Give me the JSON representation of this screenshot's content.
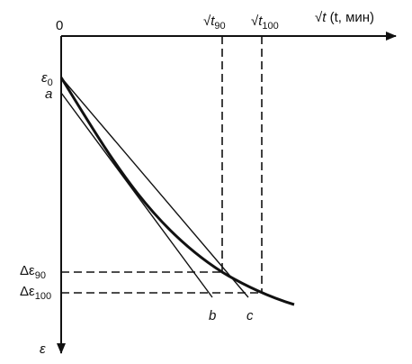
{
  "axes": {
    "origin_label": "0",
    "x_label_prefix": "√",
    "x_label_var": "t",
    "x_label_suffix": " (t, мин)",
    "y_label": "ε"
  },
  "top_ticks": {
    "t90": {
      "radical": "√",
      "var": "t",
      "sub": "90"
    },
    "t100": {
      "radical": "√",
      "var": "t",
      "sub": "100"
    }
  },
  "left_labels": {
    "eps0": {
      "main": "ε",
      "sub": "0"
    },
    "a": "a",
    "d90": {
      "main": "Δε",
      "sub": "90"
    },
    "d100": {
      "main": "Δε",
      "sub": "100"
    }
  },
  "line_labels": {
    "b": "b",
    "c": "c"
  }
}
